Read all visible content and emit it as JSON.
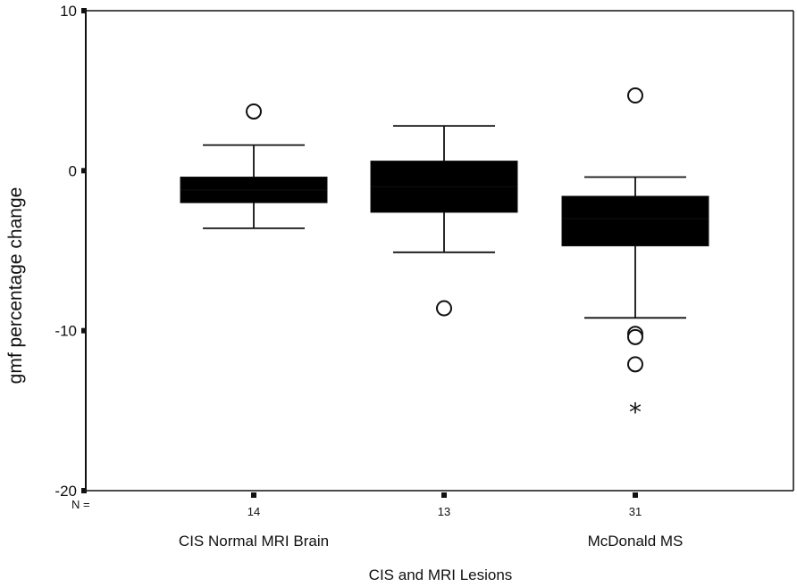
{
  "chart_data": {
    "type": "boxplot",
    "ylabel": "gmf percentage change",
    "xlabel": "CIS and MRI Lesions",
    "ylim": [
      -20,
      10
    ],
    "yticks": [
      10,
      0,
      -10,
      -20
    ],
    "ytick_labels": [
      "10",
      "0",
      "-10",
      "-20"
    ],
    "n_prefix": "N =",
    "grid": false,
    "legend": "none",
    "box_color": "#000000",
    "groups": [
      {
        "n": "14",
        "category_label": "CIS Normal MRI Brain",
        "whisker_low": -3.6,
        "q1": -2.0,
        "median": -1.2,
        "q3": -0.4,
        "whisker_high": 1.6,
        "outliers": [
          3.7
        ],
        "extremes": []
      },
      {
        "n": "13",
        "category_label": "",
        "whisker_low": -5.1,
        "q1": -2.6,
        "median": -1.0,
        "q3": 0.6,
        "whisker_high": 2.8,
        "outliers": [
          -8.6
        ],
        "extremes": []
      },
      {
        "n": "31",
        "category_label": "McDonald MS",
        "whisker_low": -9.2,
        "q1": -4.7,
        "median": -3.0,
        "q3": -1.6,
        "whisker_high": -0.4,
        "outliers": [
          4.7,
          -10.2,
          -10.4,
          -12.1
        ],
        "extremes": [
          -14.9
        ]
      }
    ]
  }
}
